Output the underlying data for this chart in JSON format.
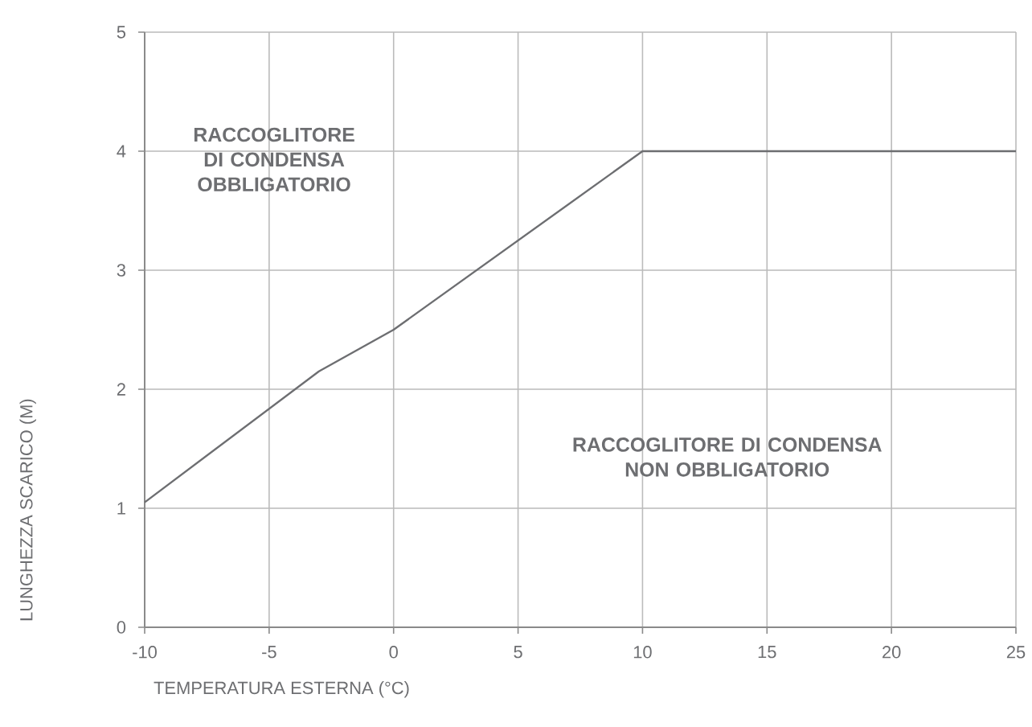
{
  "chart_data": {
    "type": "line",
    "xlabel": "TEMPERATURA ESTERNA (°C)",
    "ylabel": "LUNGHEZZA SCARICO (M)",
    "x": [
      -10,
      -3,
      0,
      10,
      25
    ],
    "series": [
      {
        "color": "#6d6e71",
        "values": [
          1.05,
          2.15,
          2.5,
          4,
          4
        ]
      }
    ],
    "xlim": [
      -10,
      25
    ],
    "xticks": [
      -10,
      -5,
      0,
      5,
      10,
      15,
      20,
      25
    ],
    "ylim": [
      0,
      5
    ],
    "yticks": [
      0,
      1,
      2,
      3,
      4,
      5
    ],
    "grid": true,
    "marker": "none",
    "line_style": "solid",
    "annotations": [
      "RACCOGLITORE DI CONDENSA OBBLIGATORIO",
      "RACCOGLITORE DI CONDENSA NON OBBLIGATORIO"
    ]
  }
}
